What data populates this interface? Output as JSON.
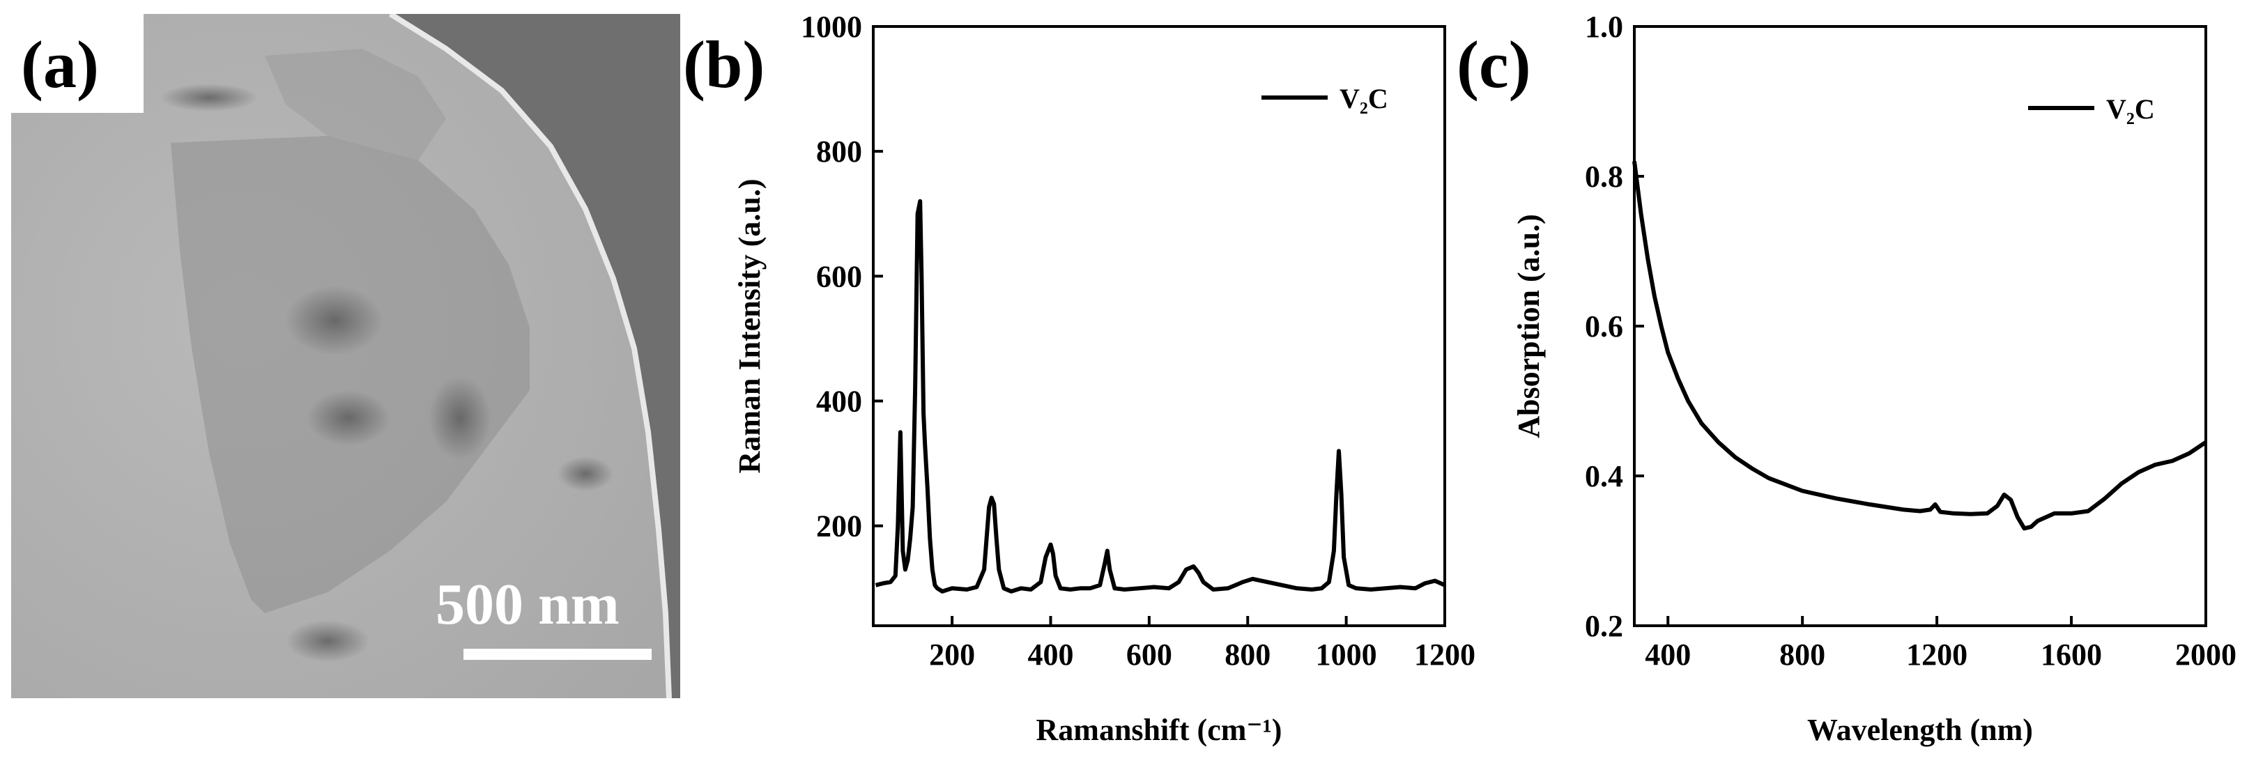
{
  "panels": {
    "a": {
      "label": "(a)",
      "scale_bar": "500 nm"
    },
    "b": {
      "label": "(b)"
    },
    "c": {
      "label": "(c)"
    }
  },
  "chart_data": [
    {
      "panel": "b",
      "type": "line",
      "xlabel": "Ramanshift (cm⁻¹)",
      "ylabel": "Raman Intensity (a.u.)",
      "xlim": [
        40,
        1200
      ],
      "ylim": [
        40,
        1000
      ],
      "xticks": [
        200,
        400,
        600,
        800,
        1000,
        1200
      ],
      "yticks": [
        200,
        400,
        600,
        800,
        1000
      ],
      "legend_position": "top-right",
      "series": [
        {
          "name": "V₂C",
          "x": [
            45,
            60,
            75,
            85,
            90,
            95,
            100,
            105,
            110,
            115,
            120,
            125,
            130,
            135,
            138,
            142,
            145,
            150,
            155,
            160,
            165,
            170,
            180,
            200,
            230,
            250,
            265,
            275,
            280,
            285,
            290,
            295,
            305,
            320,
            340,
            360,
            380,
            390,
            400,
            405,
            410,
            420,
            440,
            460,
            480,
            500,
            510,
            515,
            520,
            530,
            550,
            580,
            610,
            640,
            660,
            675,
            690,
            700,
            710,
            730,
            760,
            790,
            810,
            840,
            870,
            900,
            930,
            950,
            965,
            975,
            980,
            985,
            990,
            995,
            1005,
            1020,
            1050,
            1080,
            1110,
            1140,
            1160,
            1180,
            1200
          ],
          "y": [
            105,
            108,
            110,
            120,
            200,
            350,
            160,
            130,
            145,
            180,
            230,
            420,
            700,
            720,
            600,
            380,
            330,
            260,
            180,
            130,
            105,
            100,
            95,
            100,
            98,
            102,
            130,
            230,
            245,
            235,
            180,
            130,
            100,
            95,
            100,
            98,
            110,
            150,
            170,
            155,
            120,
            100,
            98,
            100,
            100,
            105,
            140,
            160,
            130,
            100,
            98,
            100,
            102,
            100,
            110,
            130,
            135,
            125,
            110,
            98,
            100,
            110,
            115,
            110,
            105,
            100,
            98,
            100,
            110,
            160,
            250,
            320,
            250,
            150,
            105,
            100,
            98,
            100,
            102,
            100,
            108,
            112,
            105
          ]
        }
      ]
    },
    {
      "panel": "c",
      "type": "line",
      "xlabel": "Wavelength (nm)",
      "ylabel": "Absorption (a.u.)",
      "xlim": [
        300,
        2000
      ],
      "ylim": [
        0.2,
        1.0
      ],
      "xticks": [
        400,
        800,
        1200,
        1600,
        2000
      ],
      "yticks": [
        0.2,
        0.4,
        0.6,
        0.8,
        1.0
      ],
      "legend_position": "top-right",
      "series": [
        {
          "name": "V₂C",
          "x": [
            300,
            320,
            340,
            360,
            380,
            400,
            430,
            460,
            500,
            550,
            600,
            650,
            700,
            800,
            900,
            1000,
            1100,
            1150,
            1180,
            1195,
            1210,
            1250,
            1300,
            1350,
            1380,
            1400,
            1420,
            1440,
            1460,
            1480,
            1500,
            1550,
            1600,
            1650,
            1700,
            1750,
            1800,
            1850,
            1900,
            1950,
            2000
          ],
          "y": [
            0.82,
            0.75,
            0.69,
            0.64,
            0.6,
            0.565,
            0.53,
            0.5,
            0.47,
            0.445,
            0.425,
            0.41,
            0.397,
            0.38,
            0.37,
            0.362,
            0.355,
            0.353,
            0.355,
            0.362,
            0.352,
            0.35,
            0.349,
            0.35,
            0.36,
            0.375,
            0.368,
            0.345,
            0.33,
            0.332,
            0.34,
            0.35,
            0.35,
            0.353,
            0.37,
            0.39,
            0.405,
            0.415,
            0.42,
            0.43,
            0.445
          ]
        }
      ]
    }
  ]
}
